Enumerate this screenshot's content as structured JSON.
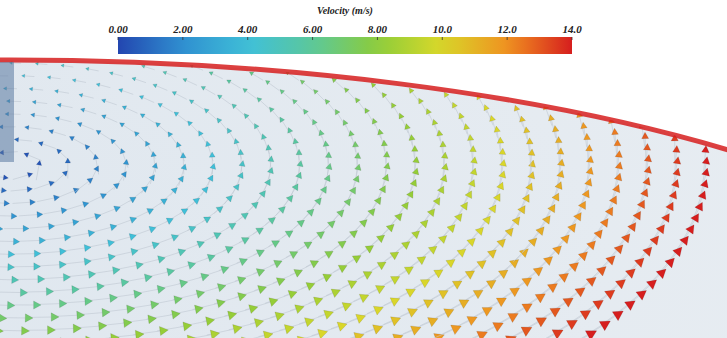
{
  "chart_data": {
    "type": "vector_field",
    "title": "Velocity (m/s)",
    "values": [
      0.4,
      1.0,
      1.6,
      2.2,
      2.8,
      3.4,
      4.0,
      4.6,
      5.2,
      5.8,
      6.4,
      7.0,
      7.6,
      8.2,
      8.8,
      9.4,
      10.0,
      10.6,
      11.2,
      11.8,
      12.4,
      13.0,
      13.5,
      14.0
    ],
    "color_range": [
      0,
      14
    ],
    "color_ticks": [
      {
        "value": 0,
        "label": "0.00"
      },
      {
        "value": 2,
        "label": "2.00"
      },
      {
        "value": 4,
        "label": "4.00"
      },
      {
        "value": 6,
        "label": "6.00"
      },
      {
        "value": 8,
        "label": "8.00"
      },
      {
        "value": 10,
        "label": "10.0"
      },
      {
        "value": 12,
        "label": "12.0"
      },
      {
        "value": 14,
        "label": "14.0"
      }
    ]
  }
}
